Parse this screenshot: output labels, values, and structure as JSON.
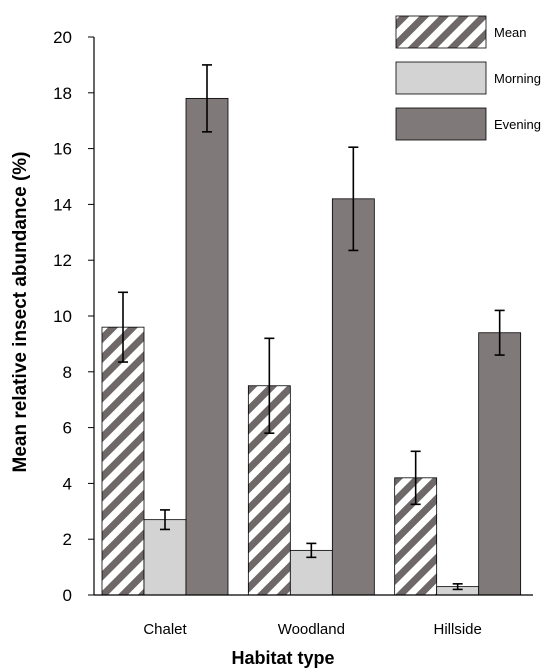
{
  "chart_data": {
    "type": "bar",
    "xlabel": "Habitat type",
    "ylabel": "Mean relative insect abundance (%)",
    "categories": [
      "Chalet",
      "Woodland",
      "Hillside"
    ],
    "ylim": [
      0,
      20
    ],
    "yticks": [
      0,
      2,
      4,
      6,
      8,
      10,
      12,
      14,
      16,
      18,
      20
    ],
    "grid": false,
    "legend_position": "top-right",
    "series": [
      {
        "name": "Mean",
        "pattern": "hatched",
        "fill": "#ffffff",
        "hatch_color": "#6e6868",
        "values": [
          9.6,
          7.5,
          4.2
        ],
        "error": [
          1.25,
          1.7,
          0.95
        ]
      },
      {
        "name": "Morning",
        "pattern": "solid",
        "fill": "#d3d3d3",
        "values": [
          2.7,
          1.6,
          0.3
        ],
        "error": [
          0.35,
          0.25,
          0.1
        ]
      },
      {
        "name": "Evening",
        "pattern": "solid",
        "fill": "#807979",
        "values": [
          17.8,
          14.2,
          9.4
        ],
        "error": [
          1.2,
          1.85,
          0.8
        ]
      }
    ]
  }
}
